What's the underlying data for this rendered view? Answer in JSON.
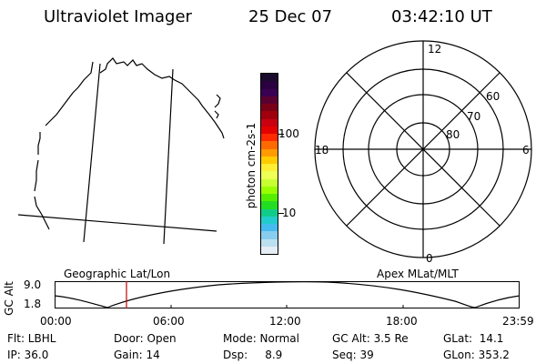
{
  "header": {
    "title": "Ultraviolet Imager",
    "date": "25 Dec 07",
    "time": "03:42:10 UT"
  },
  "colorbar": {
    "axis_label": "photon cm-2s-1",
    "ticks": [
      "100",
      "10"
    ],
    "colors": [
      "#1a0a2e",
      "#2a0040",
      "#3a0052",
      "#5a0030",
      "#7a0018",
      "#a0000e",
      "#c80010",
      "#e40000",
      "#ff2a00",
      "#ff6a00",
      "#ff9a00",
      "#ffcc00",
      "#ffee33",
      "#eeff55",
      "#c8ff33",
      "#99ff00",
      "#55ee00",
      "#22dd22",
      "#11cc88",
      "#22cccc",
      "#44bbee",
      "#88ccee",
      "#bbe0f0",
      "#e4eef4"
    ]
  },
  "polar_plot": {
    "lat_labels": [
      "60",
      "70",
      "80"
    ],
    "mlt_labels": {
      "top": "12",
      "left": "18",
      "right": "6",
      "bottom": "0"
    }
  },
  "timeline": {
    "left_label": "Geographic Lat/Lon",
    "right_label": "Apex MLat/MLT",
    "y_axis_label": "GC Alt",
    "y_ticks": [
      "9.0",
      "1.8"
    ],
    "x_ticks": [
      "00:00",
      "06:00",
      "12:00",
      "18:00",
      "23:59"
    ]
  },
  "status": {
    "filter": "Flt: LBHL",
    "door": "Door: Open",
    "mode": "Mode: Normal",
    "gc_alt": "GC Alt: 3.5 Re",
    "glat": "GLat:  14.1",
    "ip": "IP: 36.0",
    "gain": "Gain: 14",
    "dsp": "Dsp:     8.9",
    "seq": "Seq: 39",
    "glon": "GLon: 353.2"
  }
}
